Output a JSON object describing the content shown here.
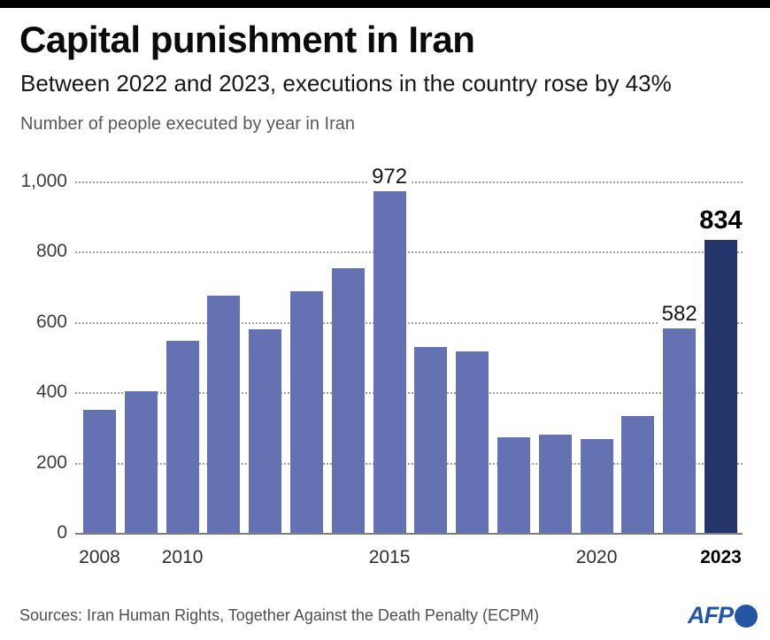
{
  "header": {
    "title": "Capital punishment in Iran",
    "subtitle": "Between 2022 and 2023, executions in the country rose by 43%",
    "caption": "Number of people executed by year in Iran"
  },
  "chart_data": {
    "type": "bar",
    "title": "Number of people executed by year in Iran",
    "categories": [
      "2008",
      "2009",
      "2010",
      "2011",
      "2012",
      "2013",
      "2014",
      "2015",
      "2016",
      "2017",
      "2018",
      "2019",
      "2020",
      "2021",
      "2022",
      "2023"
    ],
    "values": [
      350,
      402,
      546,
      676,
      580,
      687,
      753,
      972,
      530,
      517,
      273,
      280,
      267,
      333,
      582,
      834
    ],
    "ylim": [
      0,
      1000
    ],
    "yticks": [
      0,
      200,
      400,
      600,
      800,
      1000
    ],
    "ytick_labels": [
      "0",
      "200",
      "400",
      "600",
      "800",
      "1,000"
    ],
    "xtick_labels": [
      {
        "index": 0,
        "label": "2008",
        "bold": false
      },
      {
        "index": 2,
        "label": "2010",
        "bold": false
      },
      {
        "index": 7,
        "label": "2015",
        "bold": false
      },
      {
        "index": 12,
        "label": "2020",
        "bold": false
      },
      {
        "index": 15,
        "label": "2023",
        "bold": true
      }
    ],
    "value_labels": [
      {
        "index": 7,
        "label": "972",
        "bold": false
      },
      {
        "index": 14,
        "label": "582",
        "bold": false
      },
      {
        "index": 15,
        "label": "834",
        "bold": true
      }
    ],
    "bar_color": "#6471b3",
    "highlight_color": "#23356b",
    "highlight_index": 15,
    "grid": "horizontal-dotted",
    "legend": "none"
  },
  "footer": {
    "sources": "Sources: Iran Human Rights, Together Against the Death Penalty (ECPM)",
    "logo_text": "AFP"
  },
  "colors": {
    "top_bar": "#000000",
    "bar": "#6471b3",
    "highlight_bar": "#23356b",
    "afp_blue": "#2456a4",
    "grid": "#9b9b9b",
    "axis": "#7c7c7c",
    "caption_gray": "#58585a",
    "sources_gray": "#4f4f4f"
  }
}
